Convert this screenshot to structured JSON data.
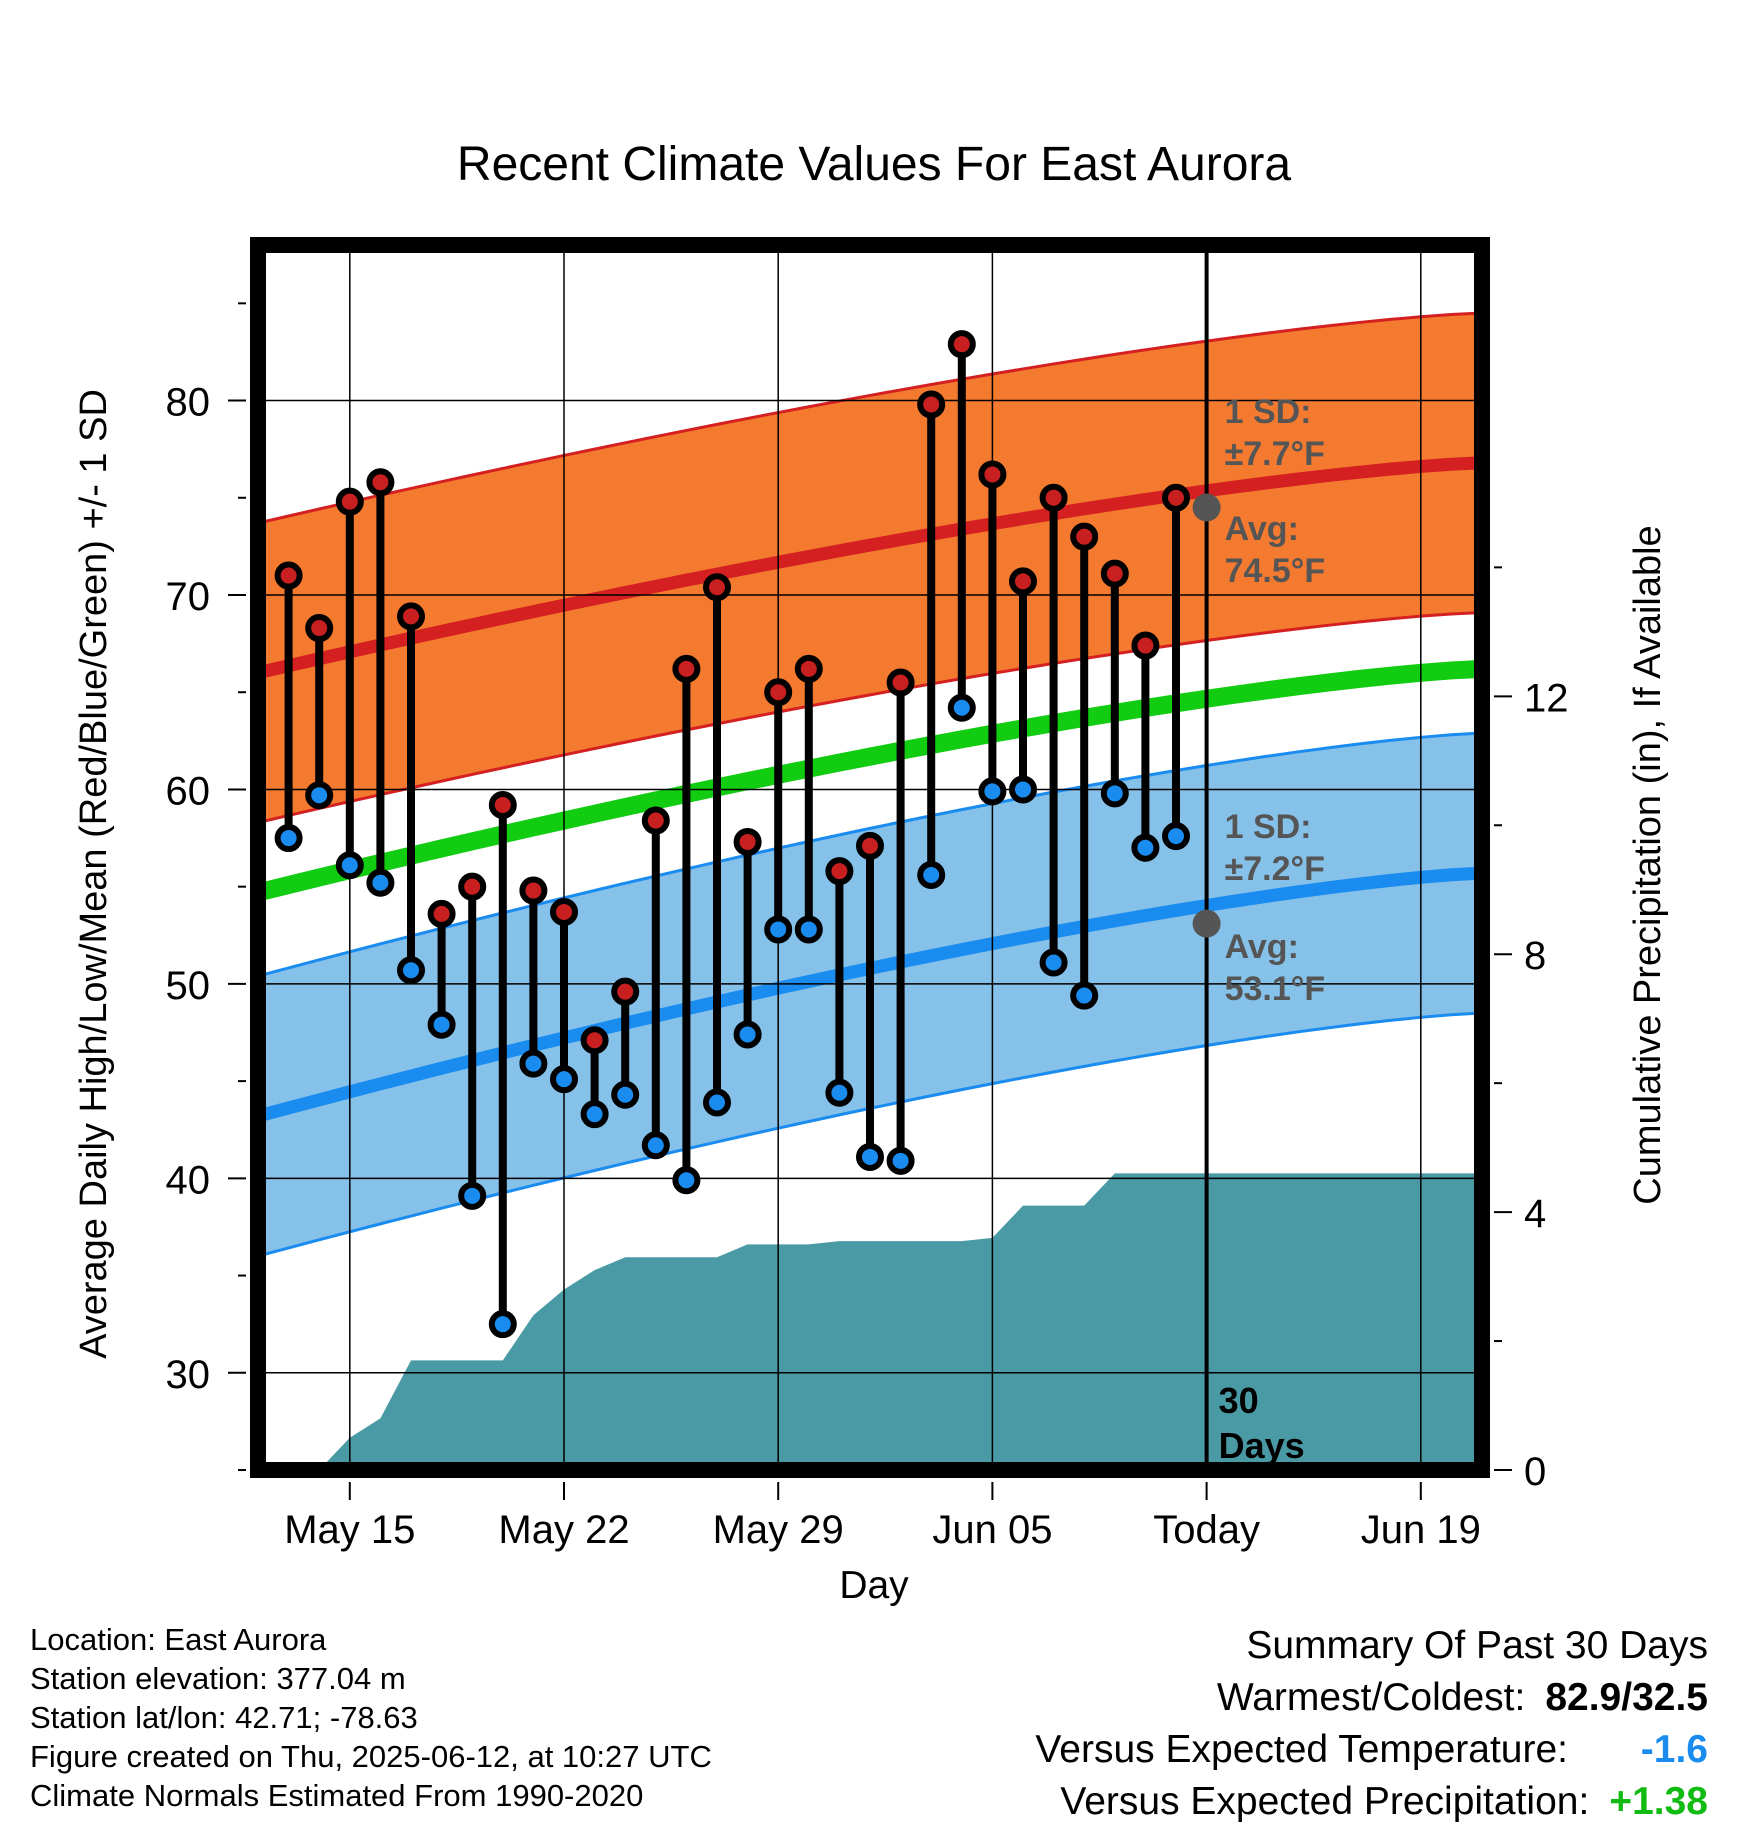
{
  "chart_data": {
    "type": "line",
    "title": "Recent Climate Values For East Aurora",
    "xlabel": "Day",
    "ylabel": "Average Daily High/Low/Mean (Red/Blue/Green) +/- 1 SD",
    "y2label": "Cumulative Precipitation (in), If Available",
    "ylim": [
      25,
      88
    ],
    "y2lim": [
      0,
      19
    ],
    "x_ticks": [
      "May 15",
      "May 22",
      "May 29",
      "Jun 05",
      "Today",
      "Jun 19"
    ],
    "y_ticks": [
      30,
      40,
      50,
      60,
      70,
      80
    ],
    "y2_ticks": [
      0,
      4,
      8,
      12
    ],
    "x_range_days": [
      "May 12",
      "Jun 21"
    ],
    "today": "Jun 12",
    "today_label": "30 Days",
    "normal_high": {
      "start": 66.0,
      "end": 76.8,
      "sd_label": "1 SD:",
      "sd_value": "±7.7°F",
      "avg_label": "Avg:",
      "avg_value": "74.5°F",
      "sd": 7.7,
      "color": "#d42020",
      "band_color": "#f47a30"
    },
    "normal_low": {
      "start": 43.2,
      "end": 55.7,
      "sd_label": "1 SD:",
      "sd_value": "±7.2°F",
      "avg_label": "Avg:",
      "avg_value": "53.1°F",
      "sd": 7.2,
      "color": "#1a8cf0",
      "band_color": "#85c1e9"
    },
    "normal_mean": {
      "start": 54.7,
      "end": 66.2,
      "color": "#11cc11"
    },
    "series": [
      {
        "name": "High",
        "color": "#c82020",
        "values": [
          71.0,
          68.3,
          74.8,
          75.8,
          68.9,
          53.6,
          55.0,
          59.2,
          54.8,
          53.7,
          47.1,
          49.6,
          58.4,
          66.2,
          70.4,
          57.3,
          65.0,
          66.2,
          55.8,
          57.1,
          65.5,
          79.8,
          82.9,
          76.2,
          70.7,
          75.0,
          73.0,
          71.1,
          67.4,
          75.0
        ]
      },
      {
        "name": "Low",
        "color": "#1a8cf0",
        "values": [
          57.5,
          59.7,
          56.1,
          55.2,
          50.7,
          47.9,
          39.1,
          32.5,
          45.9,
          45.1,
          43.3,
          44.3,
          41.7,
          39.9,
          43.9,
          47.4,
          52.8,
          52.8,
          44.4,
          41.1,
          40.9,
          55.6,
          64.2,
          59.9,
          60.0,
          51.1,
          49.4,
          59.8,
          57.0,
          57.6
        ]
      }
    ],
    "days": [
      "May 13",
      "May 14",
      "May 15",
      "May 16",
      "May 17",
      "May 18",
      "May 19",
      "May 20",
      "May 21",
      "May 22",
      "May 23",
      "May 24",
      "May 25",
      "May 26",
      "May 27",
      "May 28",
      "May 29",
      "May 30",
      "May 31",
      "Jun 01",
      "Jun 02",
      "Jun 03",
      "Jun 04",
      "Jun 05",
      "Jun 06",
      "Jun 07",
      "Jun 08",
      "Jun 09",
      "Jun 10",
      "Jun 11"
    ],
    "precip_cumulative": {
      "color": "#4a9aa5",
      "x_days": [
        0,
        1,
        2,
        3,
        4,
        5,
        6,
        7,
        8,
        9,
        10,
        11,
        12,
        13,
        14,
        15,
        16,
        17,
        18,
        19,
        20,
        21,
        22,
        23,
        24,
        25,
        26,
        27,
        28,
        29,
        30,
        31,
        32,
        33,
        34,
        35,
        36,
        37,
        38,
        39,
        40
      ],
      "values": [
        0.0,
        0.0,
        0.0,
        0.5,
        0.8,
        1.7,
        1.7,
        1.7,
        1.7,
        2.4,
        2.8,
        3.1,
        3.3,
        3.3,
        3.3,
        3.3,
        3.5,
        3.5,
        3.5,
        3.55,
        3.55,
        3.55,
        3.55,
        3.55,
        3.6,
        4.1,
        4.1,
        4.1,
        4.6,
        4.6,
        4.6,
        4.6,
        4.6,
        4.6,
        4.6,
        4.6,
        4.6,
        4.6,
        4.6,
        4.6,
        4.6
      ]
    },
    "grid": true
  },
  "metadata": {
    "location": "Location: East Aurora",
    "elevation": "Station elevation: 377.04 m",
    "latlon": "Station lat/lon: 42.71; -78.63",
    "created": "Figure created on Thu, 2025-06-12, at 10:27 UTC",
    "normals": "Climate Normals Estimated From 1990-2020"
  },
  "summary": {
    "title": "Summary Of Past 30 Days",
    "warmest_label": "Warmest/Coldest:",
    "warmest_value": "82.9/32.5",
    "temp_label": "Versus Expected Temperature:",
    "temp_value": "-1.6",
    "temp_color": "#1a8cf0",
    "precip_label": "Versus Expected Precipitation:",
    "precip_value": "+1.38",
    "precip_color": "#11bb11"
  }
}
